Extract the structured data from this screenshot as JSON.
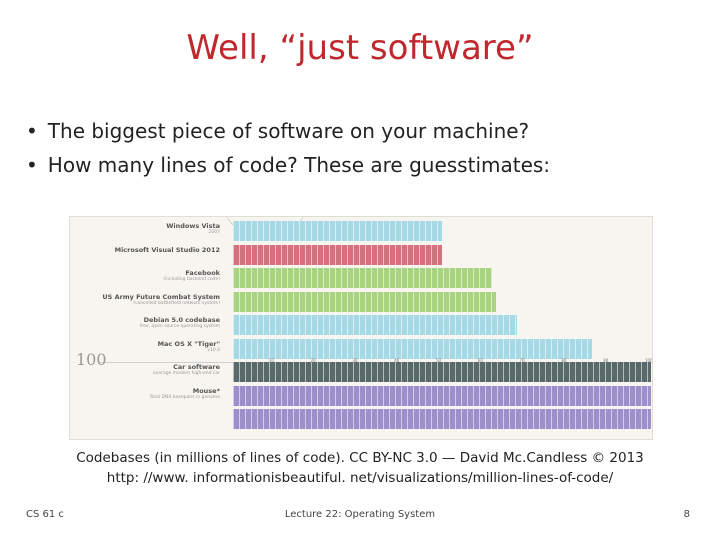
{
  "slide": {
    "title": "Well, “just software”",
    "bullets": [
      "The biggest piece of software on your machine?",
      "How many lines of code? These are guesstimates:"
    ],
    "caption_line1": "Codebases (in millions of lines of code). CC BY-NC 3.0 — David Mc.Candless © 2013",
    "caption_line2": "http: //www. informationisbeautiful. net/visualizations/million-lines-of-code/",
    "footer_left": "CS 61 c",
    "footer_center": "Lecture 22: Operating System",
    "footer_right": "8"
  },
  "chart_data": {
    "type": "bar",
    "ruler_label": "100",
    "tick_labels": [
      "10",
      "20",
      "30",
      "40",
      "50",
      "60",
      "70",
      "80",
      "90",
      "100"
    ],
    "colors": {
      "blue": "#a6d9e6",
      "red": "#d6707c",
      "green": "#a9d47f",
      "gray": "#5a6a6a",
      "purple": "#9b90cc"
    },
    "bars": [
      {
        "name": "Windows Vista",
        "sub": "2007",
        "value": 50,
        "color": "blue"
      },
      {
        "name": "Microsoft Visual Studio 2012",
        "sub": "",
        "value": 50,
        "color": "red"
      },
      {
        "name": "Facebook",
        "sub": "(including backend code)",
        "value": 62,
        "color": "green"
      },
      {
        "name": "US Army Future Combat System",
        "sub": "(cancelled battlefield network system)",
        "value": 63,
        "color": "green"
      },
      {
        "name": "Debian 5.0 codebase",
        "sub": "free, open source operating system",
        "value": 68,
        "color": "blue"
      },
      {
        "name": "Mac OS X \"Tiger\"",
        "sub": "v10.4",
        "value": 86,
        "color": "blue"
      },
      {
        "name": "Car software",
        "sub": "average modern high-end car",
        "value": 100,
        "color": "gray"
      },
      {
        "name": "Mouse*",
        "sub": "Total DNA basepairs in genome",
        "value": 100,
        "color": "purple"
      },
      {
        "name": "",
        "sub": "",
        "value": 100,
        "color": "purple"
      }
    ]
  }
}
